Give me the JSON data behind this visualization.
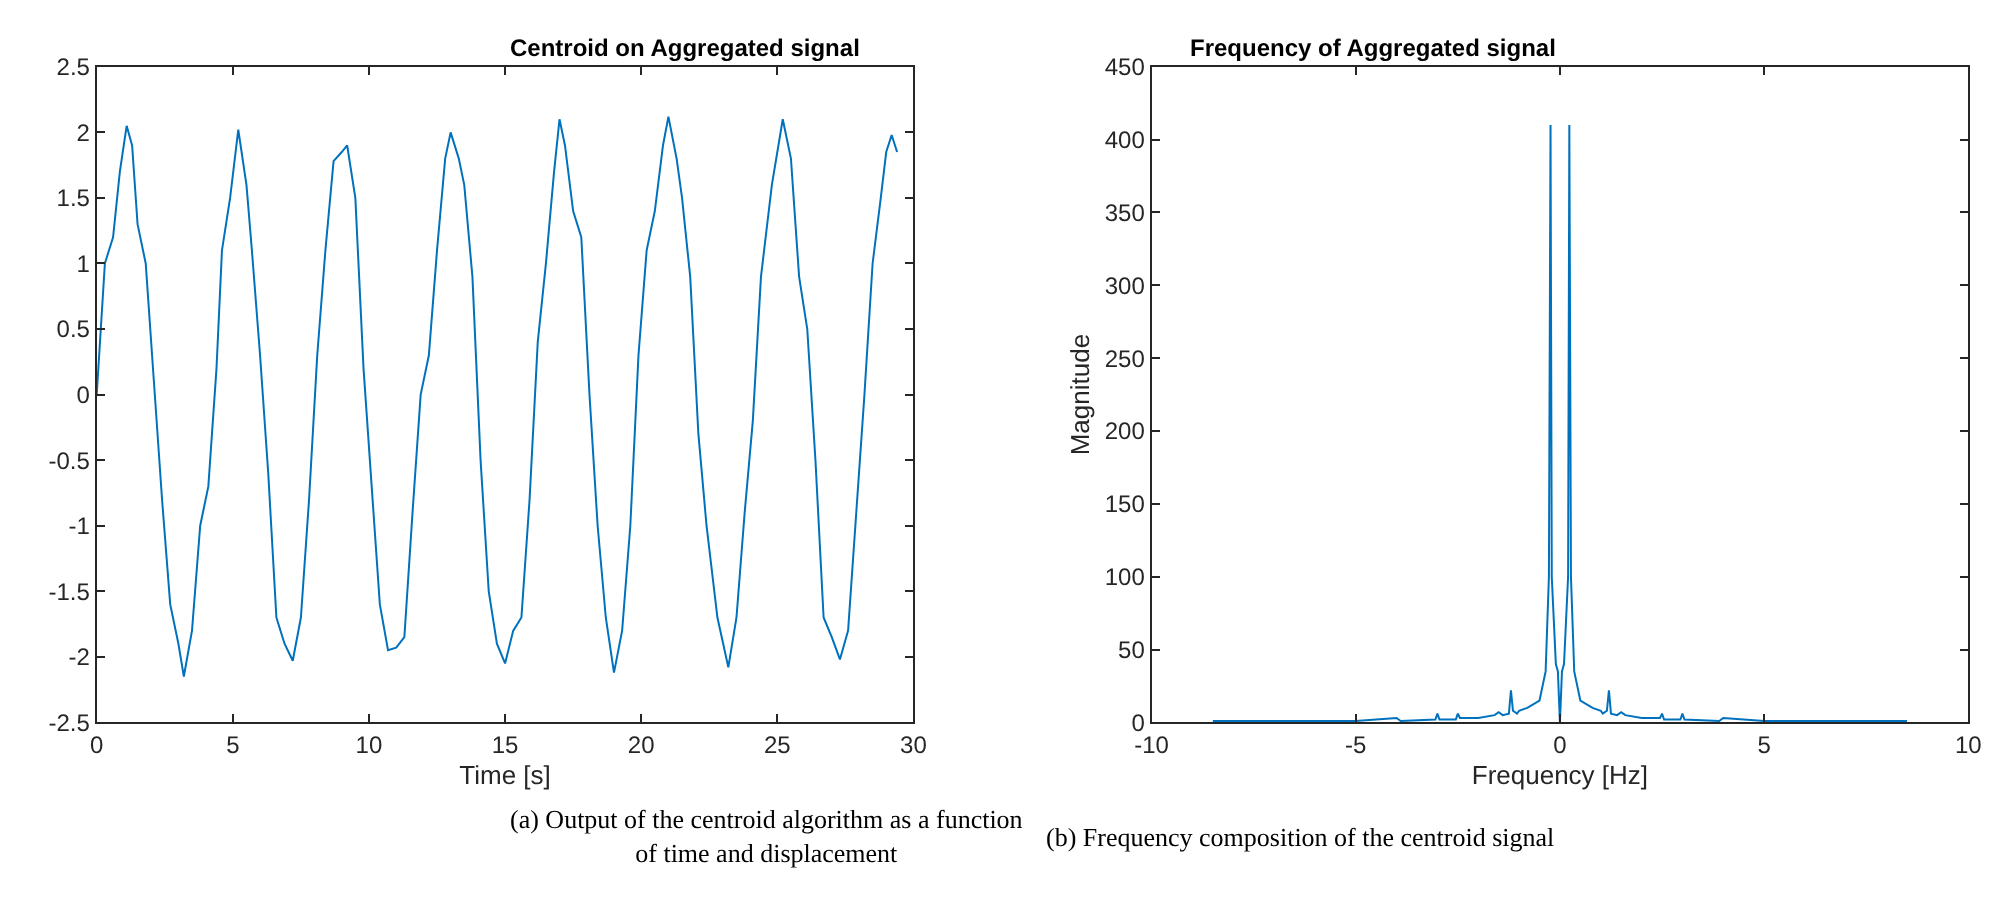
{
  "chart_data": [
    {
      "type": "line",
      "title": "Centroid on Aggregated signal",
      "xlabel": "Time [s]",
      "x": [
        0,
        0.15,
        0.3,
        0.6,
        0.85,
        1.1,
        1.3,
        1.5,
        1.8,
        2.1,
        2.4,
        2.7,
        3.0,
        3.2,
        3.5,
        3.8,
        4.1,
        4.4,
        4.6,
        4.9,
        5.2,
        5.5,
        5.7,
        6.0,
        6.3,
        6.6,
        6.9,
        7.2,
        7.5,
        7.8,
        8.1,
        8.4,
        8.7,
        9.0,
        9.2,
        9.5,
        9.8,
        10.1,
        10.4,
        10.7,
        11.0,
        11.3,
        11.6,
        11.9,
        12.2,
        12.5,
        12.8,
        13.0,
        13.3,
        13.5,
        13.8,
        14.1,
        14.4,
        14.7,
        15.0,
        15.3,
        15.6,
        15.9,
        16.2,
        16.5,
        16.8,
        17.0,
        17.2,
        17.5,
        17.8,
        18.1,
        18.4,
        18.7,
        19.0,
        19.3,
        19.6,
        19.9,
        20.2,
        20.5,
        20.8,
        21.0,
        21.3,
        21.5,
        21.8,
        22.1,
        22.4,
        22.8,
        23.2,
        23.5,
        23.8,
        24.1,
        24.4,
        24.8,
        25.2,
        25.5,
        25.8,
        26.1,
        26.4,
        26.7,
        27.0,
        27.3,
        27.6,
        27.9,
        28.2,
        28.5,
        28.8,
        29.0,
        29.2,
        29.4
      ],
      "series": [
        {
          "color": "#0072bd",
          "values": [
            0,
            0.5,
            1.0,
            1.2,
            1.7,
            2.05,
            1.9,
            1.3,
            1.0,
            0.1,
            -0.8,
            -1.6,
            -1.9,
            -2.15,
            -1.8,
            -1.0,
            -0.7,
            0.2,
            1.1,
            1.5,
            2.02,
            1.6,
            1.1,
            0.3,
            -0.6,
            -1.7,
            -1.9,
            -2.03,
            -1.7,
            -0.8,
            0.3,
            1.1,
            1.78,
            1.85,
            1.9,
            1.5,
            0.2,
            -0.7,
            -1.6,
            -1.95,
            -1.93,
            -1.85,
            -0.9,
            0.0,
            0.3,
            1.1,
            1.8,
            2.0,
            1.8,
            1.6,
            0.9,
            -0.5,
            -1.5,
            -1.9,
            -2.05,
            -1.8,
            -1.7,
            -0.8,
            0.4,
            1.0,
            1.7,
            2.1,
            1.9,
            1.4,
            1.2,
            0.0,
            -1.0,
            -1.7,
            -2.12,
            -1.8,
            -1.0,
            0.3,
            1.1,
            1.4,
            1.9,
            2.12,
            1.8,
            1.5,
            0.9,
            -0.3,
            -1.0,
            -1.7,
            -2.08,
            -1.7,
            -0.9,
            -0.2,
            0.9,
            1.6,
            2.1,
            1.8,
            0.9,
            0.5,
            -0.5,
            -1.7,
            -1.85,
            -2.02,
            -1.8,
            -0.9,
            0.0,
            1.0,
            1.5,
            1.85,
            1.98,
            1.85
          ]
        }
      ],
      "xlim": [
        0,
        30
      ],
      "xticks": [
        0,
        5,
        10,
        15,
        20,
        25,
        30
      ],
      "ylim": [
        -2.5,
        2.5
      ],
      "yticks": [
        -2.5,
        -2,
        -1.5,
        -1,
        -0.5,
        0,
        0.5,
        1,
        1.5,
        2,
        2.5
      ],
      "annotations": [
        "(a) Output of the centroid algorithm as a function of time and displacement"
      ]
    },
    {
      "type": "line",
      "title": "Frequency of Aggregated signal",
      "xlabel": "Frequency [Hz]",
      "ylabel": "Magnitude",
      "x": [
        -8.5,
        -5,
        -4,
        -3.9,
        -3.05,
        -3,
        -2.95,
        -2.55,
        -2.5,
        -2.45,
        -2,
        -1.6,
        -1.5,
        -1.4,
        -1.25,
        -1.2,
        -1.15,
        -1.05,
        -1,
        -0.8,
        -0.5,
        -0.35,
        -0.27,
        -0.23,
        -0.2,
        -0.1,
        -0.05,
        0,
        0.05,
        0.1,
        0.2,
        0.23,
        0.27,
        0.35,
        0.5,
        0.8,
        1,
        1.05,
        1.15,
        1.2,
        1.25,
        1.4,
        1.5,
        1.6,
        2,
        2.45,
        2.5,
        2.55,
        2.95,
        3,
        3.05,
        3.9,
        4,
        5,
        8.5
      ],
      "series": [
        {
          "color": "#0072bd",
          "values": [
            1,
            1,
            3,
            1,
            2,
            6,
            2,
            2,
            6,
            3,
            3,
            5,
            7,
            5,
            6,
            22,
            8,
            6,
            8,
            10,
            15,
            35,
            100,
            410,
            100,
            40,
            35,
            0,
            35,
            40,
            100,
            410,
            100,
            35,
            15,
            10,
            8,
            6,
            8,
            22,
            6,
            5,
            7,
            5,
            3,
            3,
            6,
            2,
            2,
            6,
            2,
            1,
            3,
            1,
            1
          ]
        }
      ],
      "xlim": [
        -10,
        10
      ],
      "xticks": [
        -10,
        -5,
        0,
        5,
        10
      ],
      "ylim": [
        0,
        450
      ],
      "yticks": [
        0,
        50,
        100,
        150,
        200,
        250,
        300,
        350,
        400,
        450
      ],
      "annotations": [
        "(b) Frequency composition of the centroid signal"
      ]
    }
  ]
}
